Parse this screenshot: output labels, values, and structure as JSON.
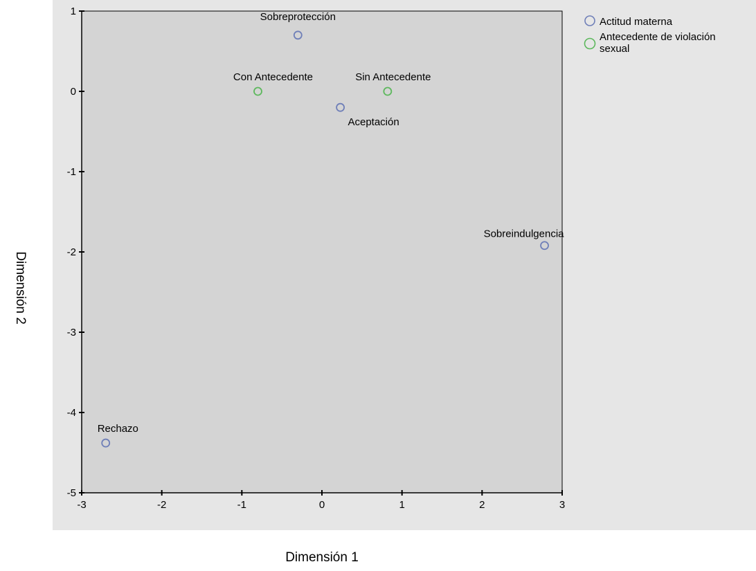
{
  "chart_data": {
    "type": "scatter",
    "xlabel": "Dimensión 1",
    "ylabel": "Dimensión 2",
    "xlim": [
      -3,
      3
    ],
    "ylim": [
      -5,
      1
    ],
    "xticks": [
      "-3",
      "-2",
      "-1",
      "0",
      "1",
      "2",
      "3"
    ],
    "yticks": [
      "1",
      "0",
      "-1",
      "-2",
      "-3",
      "-4",
      "-5"
    ],
    "grid": false,
    "legend_position": "right",
    "series": [
      {
        "name": "Actitud materna",
        "color": "#6f7fb8",
        "points": [
          {
            "label": "Sobreprotección",
            "x": -0.3,
            "y": 0.7
          },
          {
            "label": "Aceptación",
            "x": 0.23,
            "y": -0.2
          },
          {
            "label": "Sobreindulgencia",
            "x": 2.78,
            "y": -1.92
          },
          {
            "label": "Rechazo",
            "x": -2.7,
            "y": -4.38
          }
        ]
      },
      {
        "name": "Antecedente de violación sexual",
        "color": "#5cb85c",
        "points": [
          {
            "label": "Con Antecedente",
            "x": -0.8,
            "y": 0.0
          },
          {
            "label": "Sin Antecedente",
            "x": 0.82,
            "y": 0.0
          }
        ]
      }
    ]
  }
}
